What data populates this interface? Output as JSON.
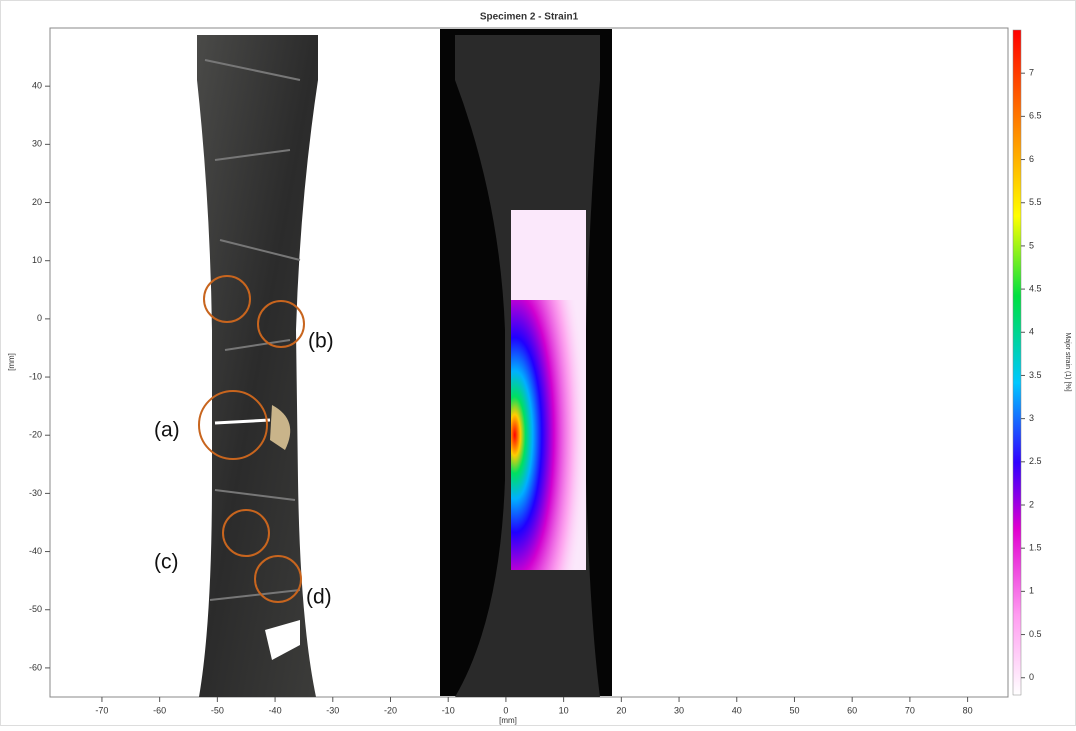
{
  "chart_data": {
    "type": "image",
    "title": "Specimen 2 - Strain1",
    "xlabel": "[mm]",
    "ylabel": "[mm]",
    "xlim": [
      -79,
      87
    ],
    "ylim": [
      -65,
      50
    ],
    "xticks": [
      -70,
      -60,
      -50,
      -40,
      -30,
      -20,
      -10,
      0,
      10,
      20,
      30,
      40,
      50,
      60,
      70,
      80
    ],
    "yticks": [
      -60,
      -50,
      -40,
      -30,
      -20,
      -10,
      0,
      10,
      20,
      30,
      40
    ],
    "colorbar": {
      "label": "Major strain (1) [%]",
      "lim": [
        -0.2,
        7.5
      ],
      "ticks": [
        0,
        0.5,
        1,
        1.5,
        2,
        2.5,
        3,
        3.5,
        4,
        4.5,
        5,
        5.5,
        6,
        6.5,
        7
      ]
    },
    "annotations": [
      "(a)",
      "(b)",
      "(c)",
      "(d)"
    ]
  }
}
